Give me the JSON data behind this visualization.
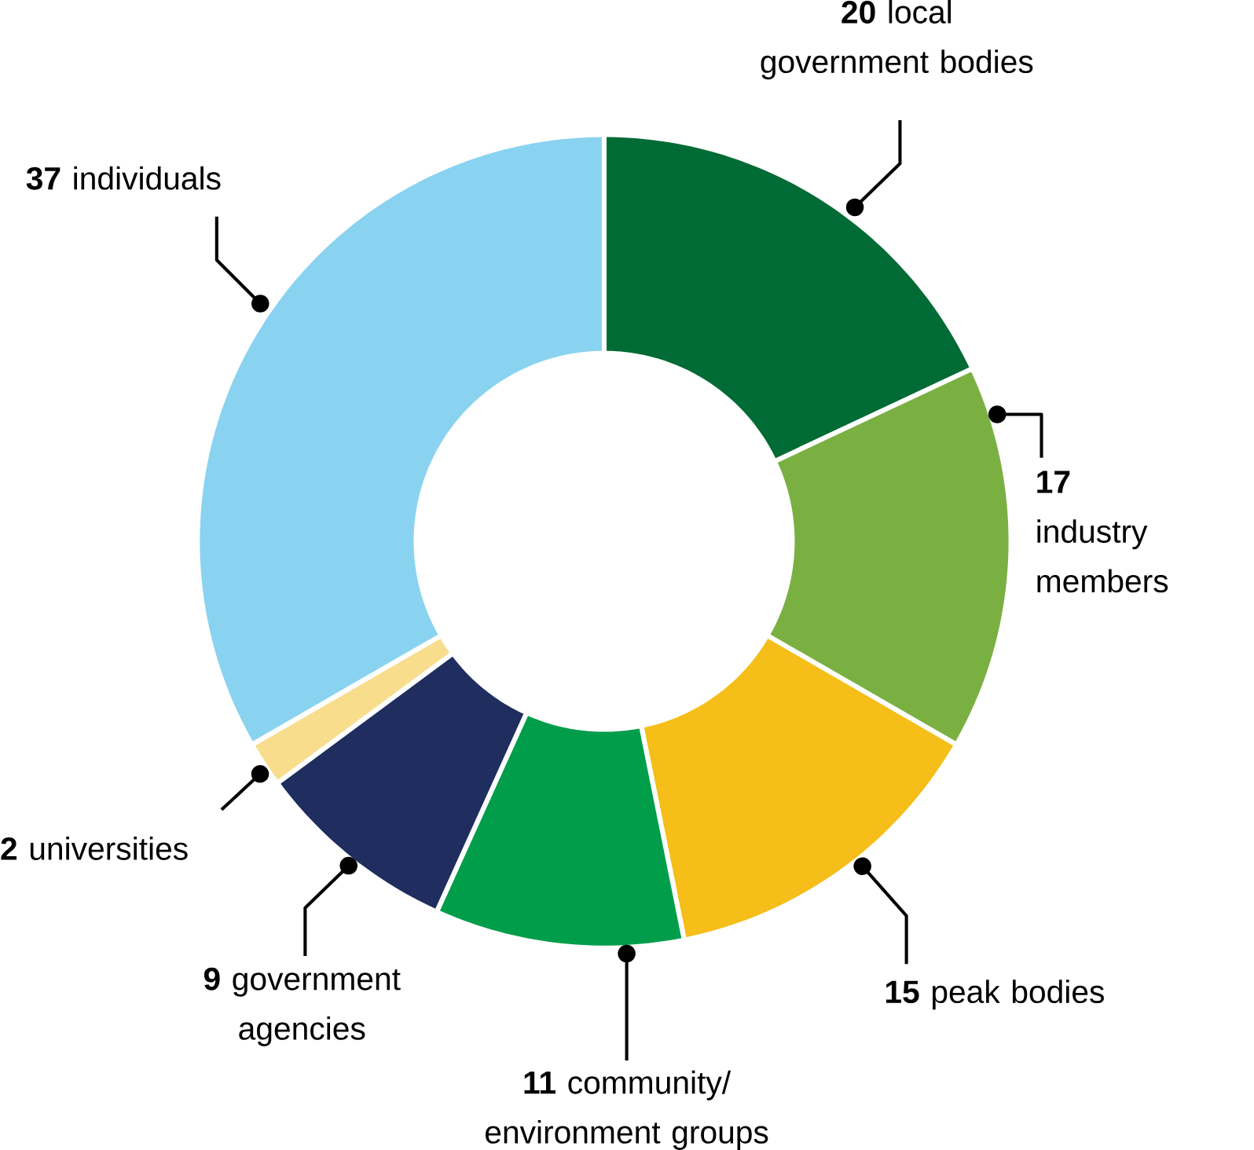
{
  "chart_data": {
    "type": "donut",
    "categories": [
      "local government bodies",
      "industry members",
      "peak bodies",
      "community/ environment groups",
      "government agencies",
      "universities",
      "individuals"
    ],
    "values": [
      20,
      17,
      15,
      11,
      9,
      2,
      37
    ],
    "colors": [
      "#006b35",
      "#7ab042",
      "#f5be18",
      "#009d4a",
      "#1f2d5f",
      "#f7dd8c",
      "#8ad3f0"
    ],
    "data_labels": true
  }
}
